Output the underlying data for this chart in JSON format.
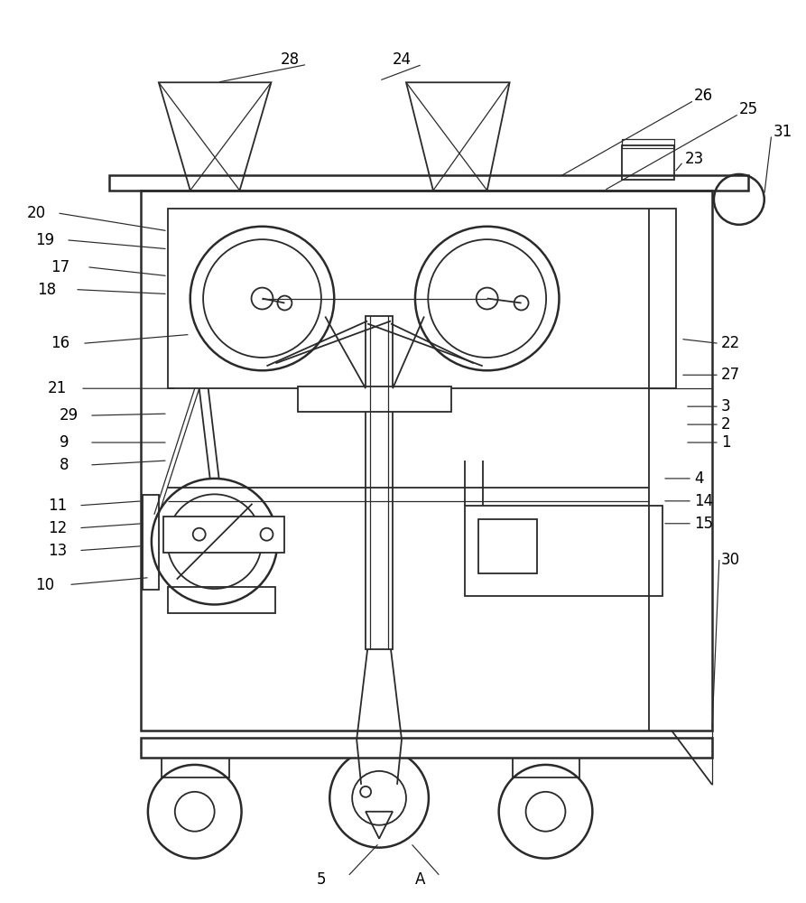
{
  "bg_color": "#ffffff",
  "line_color": "#2a2a2a",
  "lw_thin": 0.9,
  "lw_med": 1.3,
  "lw_thick": 1.8,
  "fig_width": 8.93,
  "fig_height": 10.0
}
